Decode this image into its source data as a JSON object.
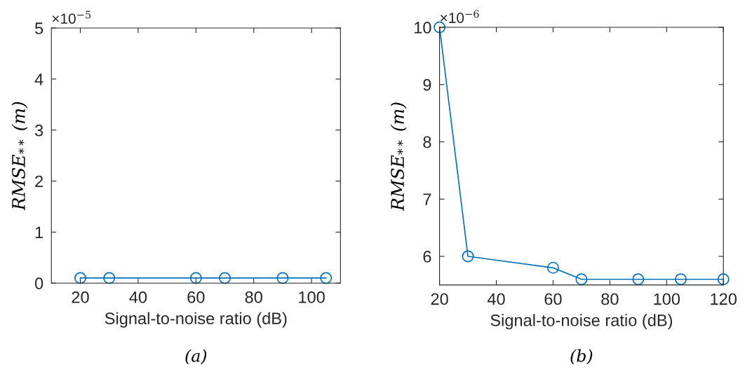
{
  "chart_data": [
    {
      "type": "line",
      "xlabel": "Signal-to-noise ratio (dB)",
      "ylabel": "RMSE$_{**}$ (m)",
      "x": [
        20,
        30,
        60,
        70,
        90,
        105
      ],
      "xlim": [
        10,
        110
      ],
      "xticks": [
        20,
        40,
        60,
        80,
        100
      ],
      "ylim": [
        0,
        5
      ],
      "yticks": [
        0,
        1,
        2,
        3,
        4,
        5
      ],
      "marker": "circle",
      "line_style": "solid",
      "grid": false,
      "series": [
        {
          "color": "#0072bd",
          "values": [
            0.1,
            0.1,
            0.1,
            0.1,
            0.1,
            0.1
          ]
        }
      ],
      "annotations": [
        "×10$^{−5}$",
        "(a)"
      ]
    },
    {
      "type": "line",
      "xlabel": "Signal-to-noise ratio (dB)",
      "ylabel": "RMSE$_{**}$ (m)",
      "x": [
        20,
        30,
        60,
        70,
        90,
        105,
        120
      ],
      "xlim": [
        20,
        120
      ],
      "xticks": [
        20,
        40,
        60,
        80,
        100,
        120
      ],
      "ylim": [
        5.5,
        10
      ],
      "yticks": [
        6,
        7,
        8,
        9,
        10
      ],
      "marker": "circle",
      "line_style": "solid",
      "grid": false,
      "series": [
        {
          "color": "#0072bd",
          "values": [
            10,
            6,
            5.8,
            5.6,
            5.6,
            5.6,
            5.6
          ]
        }
      ],
      "annotations": [
        "×10$^{−6}$",
        "(b)"
      ]
    }
  ]
}
